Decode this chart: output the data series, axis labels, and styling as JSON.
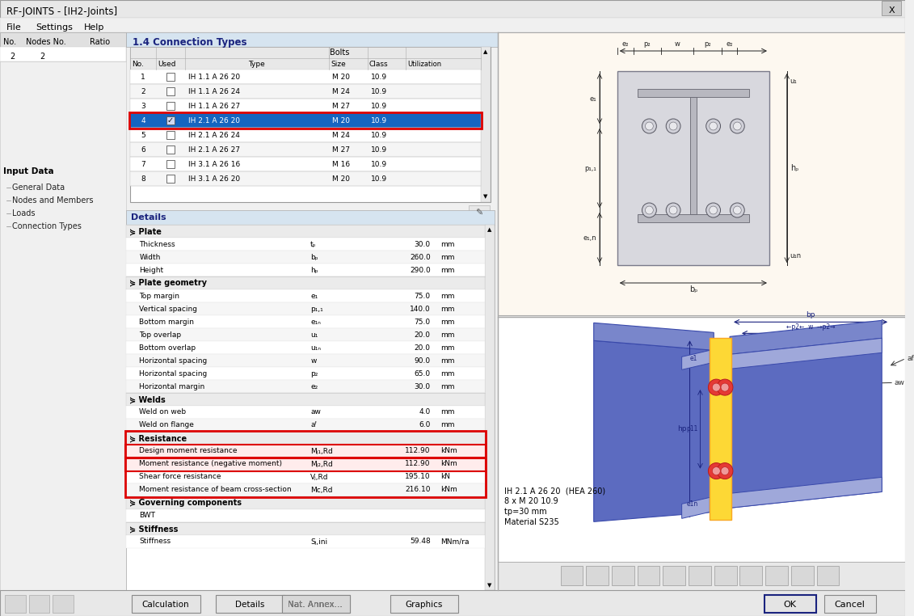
{
  "title": "RF-JOINTS - [IH2-Joints]",
  "menu_items": [
    "File",
    "Settings",
    "Help"
  ],
  "left_cols": [
    "No.",
    "Nodes No.",
    "Ratio"
  ],
  "left_row": [
    "2",
    "2"
  ],
  "input_data_items": [
    "General Data",
    "Nodes and Members",
    "Loads",
    "Connection Types"
  ],
  "connection_types_title": "1.4 Connection Types",
  "table_rows": [
    [
      1,
      false,
      "IH 1.1 A 26 20",
      "M 20",
      "10.9"
    ],
    [
      2,
      false,
      "IH 1.1 A 26 24",
      "M 24",
      "10.9"
    ],
    [
      3,
      false,
      "IH 1.1 A 26 27",
      "M 27",
      "10.9"
    ],
    [
      4,
      true,
      "IH 2.1 A 26 20",
      "M 20",
      "10.9"
    ],
    [
      5,
      false,
      "IH 2.1 A 26 24",
      "M 24",
      "10.9"
    ],
    [
      6,
      false,
      "IH 2.1 A 26 27",
      "M 27",
      "10.9"
    ],
    [
      7,
      false,
      "IH 3.1 A 26 16",
      "M 16",
      "10.9"
    ],
    [
      8,
      false,
      "IH 3.1 A 26 20",
      "M 20",
      "10.9"
    ]
  ],
  "highlighted_table_row": 4,
  "details_sections": [
    {
      "name": "Plate",
      "rows": [
        [
          "Thickness",
          "tₚ",
          "30.0",
          "mm"
        ],
        [
          "Width",
          "bₚ",
          "260.0",
          "mm"
        ],
        [
          "Height",
          "hₚ",
          "290.0",
          "mm"
        ]
      ]
    },
    {
      "name": "Plate geometry",
      "rows": [
        [
          "Top margin",
          "e₁",
          "75.0",
          "mm"
        ],
        [
          "Vertical spacing",
          "p₁,₁",
          "140.0",
          "mm"
        ],
        [
          "Bottom margin",
          "e₁ₙ",
          "75.0",
          "mm"
        ],
        [
          "Top overlap",
          "u₁",
          "20.0",
          "mm"
        ],
        [
          "Bottom overlap",
          "u₁ₙ",
          "20.0",
          "mm"
        ],
        [
          "Horizontal spacing",
          "w",
          "90.0",
          "mm"
        ],
        [
          "Horizontal spacing",
          "p₂",
          "65.0",
          "mm"
        ],
        [
          "Horizontal margin",
          "e₂",
          "30.0",
          "mm"
        ]
      ]
    },
    {
      "name": "Welds",
      "rows": [
        [
          "Weld on web",
          "aᴡ",
          "4.0",
          "mm"
        ],
        [
          "Weld on flange",
          "aᶠ",
          "6.0",
          "mm"
        ]
      ]
    },
    {
      "name": "Resistance",
      "rows": [
        [
          "Design moment resistance",
          "Mⱼ₁,Rd",
          "112.90",
          "kNm"
        ],
        [
          "Moment resistance (negative moment)",
          "Mⱼ₂,Rd",
          "112.90",
          "kNm"
        ],
        [
          "Shear force resistance",
          "Vⱼ,Rd",
          "195.10",
          "kN"
        ],
        [
          "Moment resistance of beam cross-section",
          "Mᴄ,Rd",
          "216.10",
          "kNm"
        ]
      ]
    },
    {
      "name": "Governing components",
      "rows": [
        [
          "BWT",
          "",
          "",
          ""
        ]
      ]
    },
    {
      "name": "Stiffness",
      "rows": [
        [
          "Stiffness",
          "Sⱼ,ini",
          "59.48",
          "MNm/ra"
        ]
      ]
    }
  ],
  "resistance_highlighted": [
    0,
    1
  ],
  "caption_lines": [
    "IH 2.1 A 26 20  (HEA 260)",
    "8 x M 20 10.9",
    "tp=30 mm",
    "Material S235"
  ],
  "colors": {
    "bg": "#f0f0f0",
    "title_bar": "#dce6f1",
    "white": "#ffffff",
    "light_gray": "#f0f0f0",
    "mid_gray": "#e0e0e0",
    "dark_gray": "#c0c0c0",
    "selected_blue": "#2196f3",
    "panel_header_bg": "#d6e4f0",
    "detail_section_bg": "#e8e8e8",
    "canvas_bg": "#fdf8f0",
    "canvas2_bg": "#ffffff",
    "red": "#dd0000",
    "blue_dark": "#1a237e",
    "highlight_yellow": "#fffde7"
  }
}
